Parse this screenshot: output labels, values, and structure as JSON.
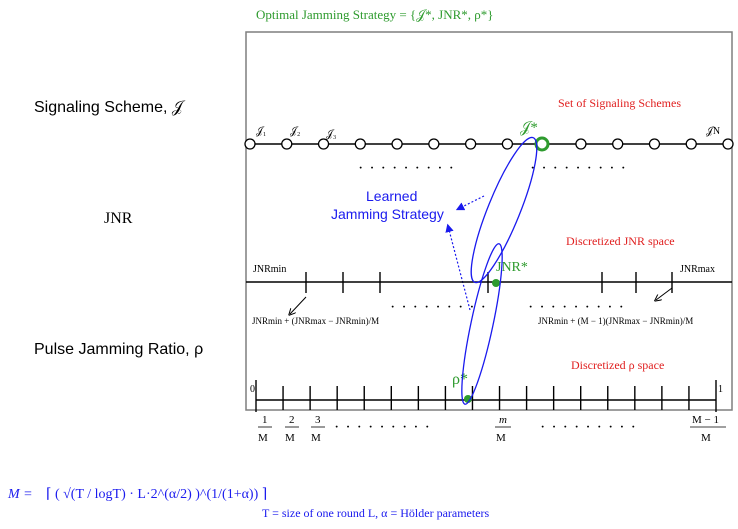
{
  "title": "Optimal Jamming Strategy = {𝒥*, JNR*, ρ*}",
  "left_labels": {
    "signaling": "Signaling Scheme, 𝒥",
    "jnr": "JNR",
    "pulse": "Pulse Jamming Ratio, ρ"
  },
  "region_labels": {
    "schemes": "Set of Signaling Schemes",
    "jnr_space": "Discretized JNR space",
    "rho_space": "Discretized ρ space"
  },
  "learned": [
    "Learned",
    "Jamming Strategy"
  ],
  "schemes": {
    "labels": [
      "𝒥₁",
      "𝒥₂",
      "𝒥₃"
    ],
    "last_label": "𝒥N",
    "optimal_label": "𝒥*",
    "count_visible": 14
  },
  "jnr_axis": {
    "min_label": "JNRmin",
    "max_label": "JNRmax",
    "optimal_label": "JNR*",
    "left_formula": "JNRmin + (JNRmax − JNRmin)/M",
    "right_formula": "JNRmin + (M − 1)(JNRmax − JNRmin)/M"
  },
  "rho_axis": {
    "start": "0",
    "end": "1",
    "optimal_label": "ρ*",
    "ticks": [
      {
        "num": "1",
        "den": "M"
      },
      {
        "num": "2",
        "den": "M"
      },
      {
        "num": "3",
        "den": "M"
      },
      {
        "num": "m",
        "den": "M"
      },
      {
        "num": "M − 1",
        "den": "M"
      }
    ]
  },
  "dots": "· · ·  · · ·  · · ·",
  "formula": {
    "lhs": "M =",
    "body": "⌈ ( √(T / logT) · L·2^(α/2) )^(1/(1+α)) ⌉",
    "note": "T = size of one round    L, α = Hölder parameters"
  }
}
